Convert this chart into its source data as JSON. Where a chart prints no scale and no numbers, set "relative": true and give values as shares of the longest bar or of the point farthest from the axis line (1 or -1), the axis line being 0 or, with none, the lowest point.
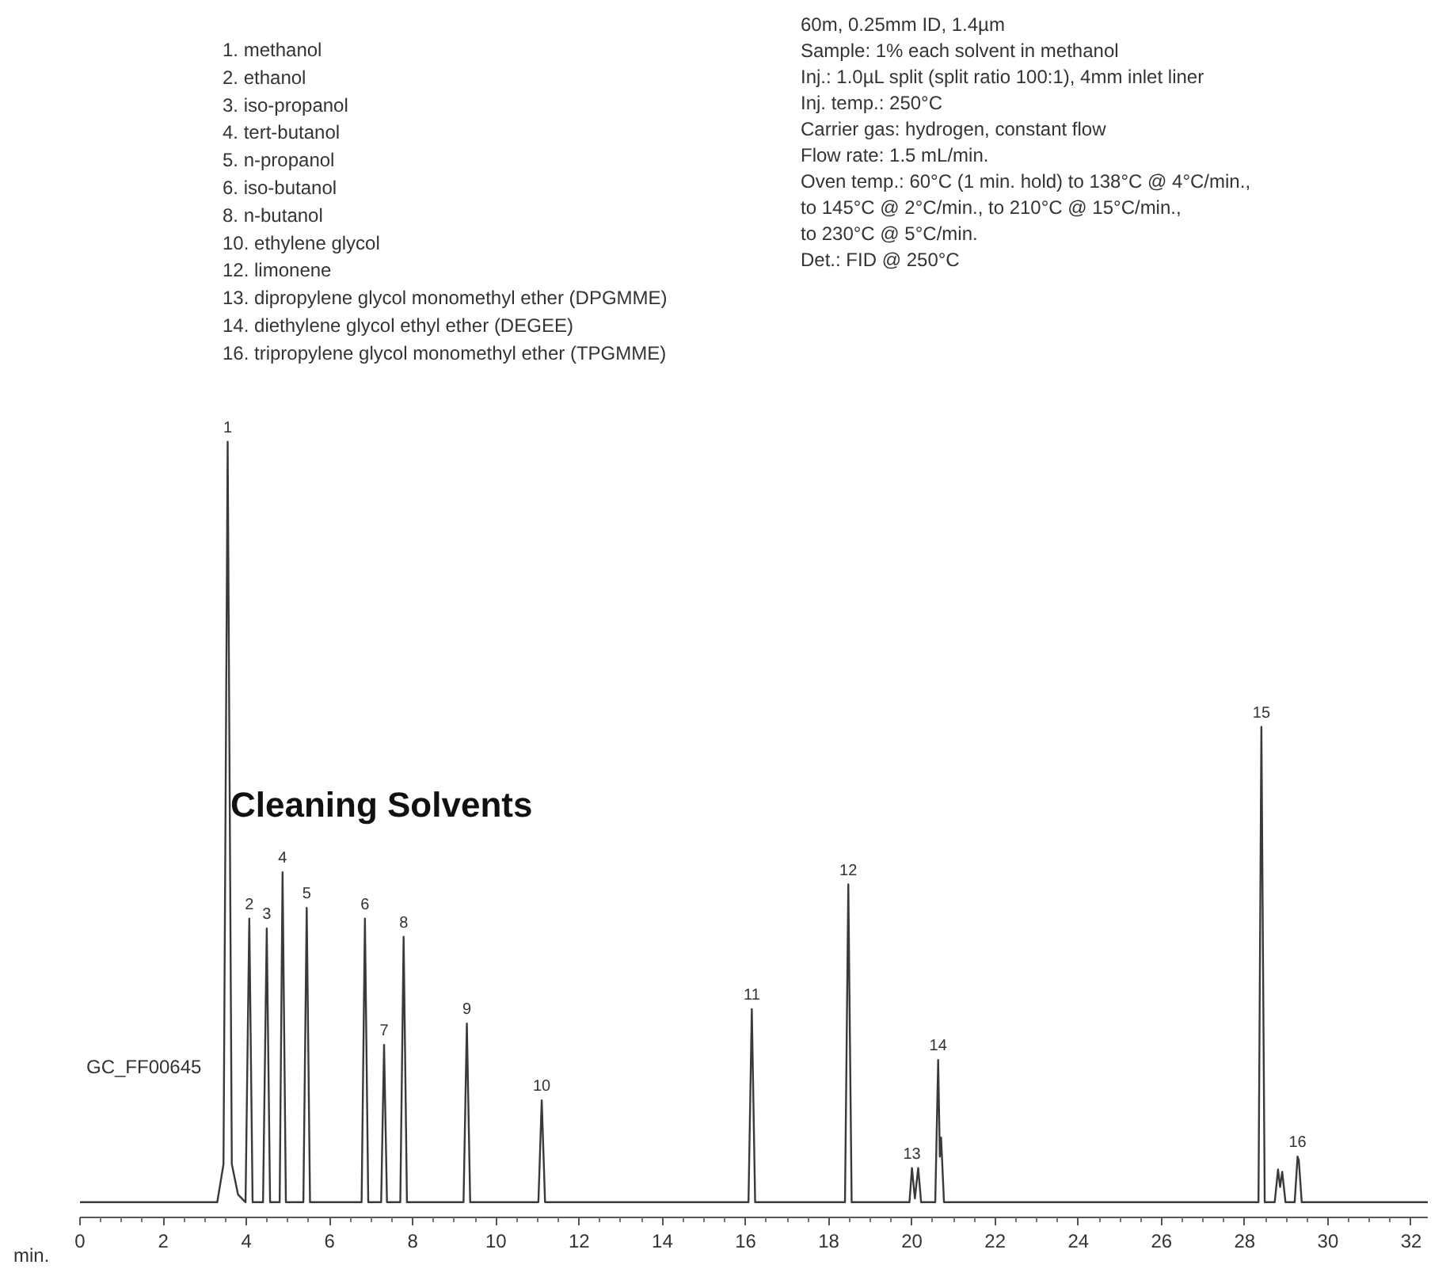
{
  "chart_data": {
    "type": "line",
    "relative": true,
    "title": "Cleaning Solvents",
    "xlabel": "min.",
    "xlim": [
      0,
      32.4
    ],
    "xticks": [
      0,
      2,
      4,
      6,
      8,
      10,
      12,
      14,
      16,
      18,
      20,
      22,
      24,
      26,
      28,
      30,
      32
    ],
    "grid": false,
    "marker": "none",
    "line_style": "solid",
    "series": [
      {
        "color": "#3a3a3a",
        "x": [
          0,
          3.3,
          3.45,
          3.55,
          3.65,
          3.8,
          3.98,
          4.07,
          4.15,
          4.4,
          4.49,
          4.57,
          4.8,
          4.87,
          4.95,
          5.37,
          5.45,
          5.53,
          6.77,
          6.85,
          6.93,
          7.24,
          7.31,
          7.38,
          7.7,
          7.78,
          7.86,
          9.22,
          9.3,
          9.38,
          11.02,
          11.1,
          11.18,
          16.07,
          16.15,
          16.23,
          18.39,
          18.47,
          18.55,
          19.94,
          20.0,
          20.07,
          20.15,
          20.22,
          20.56,
          20.63,
          20.67,
          20.7,
          20.77,
          28.33,
          28.4,
          28.48,
          28.72,
          28.8,
          28.85,
          28.9,
          28.98,
          29.2,
          29.27,
          29.3,
          29.37,
          32.4
        ],
        "values": [
          0,
          0,
          0.05,
          1,
          0.05,
          0.01,
          0,
          0.373,
          0,
          0,
          0.36,
          0,
          0,
          0.434,
          0,
          0,
          0.387,
          0,
          0,
          0.373,
          0,
          0,
          0.207,
          0,
          0,
          0.349,
          0,
          0,
          0.235,
          0,
          0,
          0.134,
          0,
          0,
          0.254,
          0,
          0,
          0.418,
          0,
          0,
          0.045,
          0.005,
          0.045,
          0,
          0,
          0.187,
          0.06,
          0.085,
          0,
          0,
          0.625,
          0,
          0,
          0.043,
          0.02,
          0.04,
          0,
          0,
          0.06,
          0.055,
          0,
          0
        ]
      }
    ],
    "annotations": [
      {
        "text": "1",
        "x": 3.55,
        "y": 1
      },
      {
        "text": "2",
        "x": 4.07,
        "y": 0.373
      },
      {
        "text": "3",
        "x": 4.49,
        "y": 0.36
      },
      {
        "text": "4",
        "x": 4.87,
        "y": 0.434
      },
      {
        "text": "5",
        "x": 5.45,
        "y": 0.387
      },
      {
        "text": "6",
        "x": 6.85,
        "y": 0.373
      },
      {
        "text": "7",
        "x": 7.31,
        "y": 0.207
      },
      {
        "text": "8",
        "x": 7.78,
        "y": 0.349
      },
      {
        "text": "9",
        "x": 9.3,
        "y": 0.235
      },
      {
        "text": "10",
        "x": 11.1,
        "y": 0.134
      },
      {
        "text": "11",
        "x": 16.15,
        "y": 0.254
      },
      {
        "text": "12",
        "x": 18.47,
        "y": 0.418
      },
      {
        "text": "13",
        "x": 20.0,
        "y": 0.045
      },
      {
        "text": "14",
        "x": 20.63,
        "y": 0.187
      },
      {
        "text": "15",
        "x": 28.4,
        "y": 0.625
      },
      {
        "text": "16",
        "x": 29.27,
        "y": 0.06
      },
      "1. methanol",
      "2. ethanol",
      "3. iso-propanol",
      "4. tert-butanol",
      "5. n-propanol",
      "6. iso-butanol",
      "8. n-butanol",
      "10. ethylene glycol",
      "12. limonene",
      "13. dipropylene glycol monomethyl ether (DPGMME)",
      "14. diethylene glycol ethyl ether (DEGEE)",
      "16. tripropylene glycol monomethyl ether (TPGMME)",
      "60m, 0.25mm ID, 1.4µm",
      "Sample: 1% each solvent in methanol",
      "Inj.: 1.0µL split (split ratio 100:1), 4mm inlet liner",
      "Inj. temp.: 250°C",
      "Carrier gas: hydrogen, constant flow",
      "Flow rate: 1.5 mL/min.",
      "Oven temp.: 60°C (1 min. hold) to 138°C @ 4°C/min.,",
      "to 145°C @ 2°C/min., to 210°C @ 15°C/min.,",
      "to 230°C @ 5°C/min.",
      "Det.: FID @ 250°C",
      "GC_FF00645"
    ]
  }
}
